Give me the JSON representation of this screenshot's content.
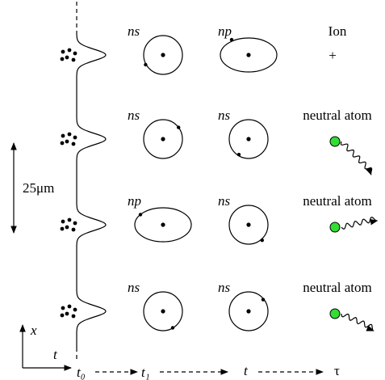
{
  "scale_label": "25μm",
  "axes": {
    "x": "x",
    "t": "t"
  },
  "timeline": [
    "t₀",
    "t₁",
    "t",
    "τ"
  ],
  "rows": [
    {
      "state1": "ns",
      "state2": "np",
      "label": "Ion",
      "marker": "+"
    },
    {
      "state1": "ns",
      "state2": "ns",
      "label": "neutral atom"
    },
    {
      "state1": "np",
      "state2": "ns",
      "label": "neutral atom"
    },
    {
      "state1": "ns",
      "state2": "ns",
      "label": "neutral atom"
    }
  ]
}
